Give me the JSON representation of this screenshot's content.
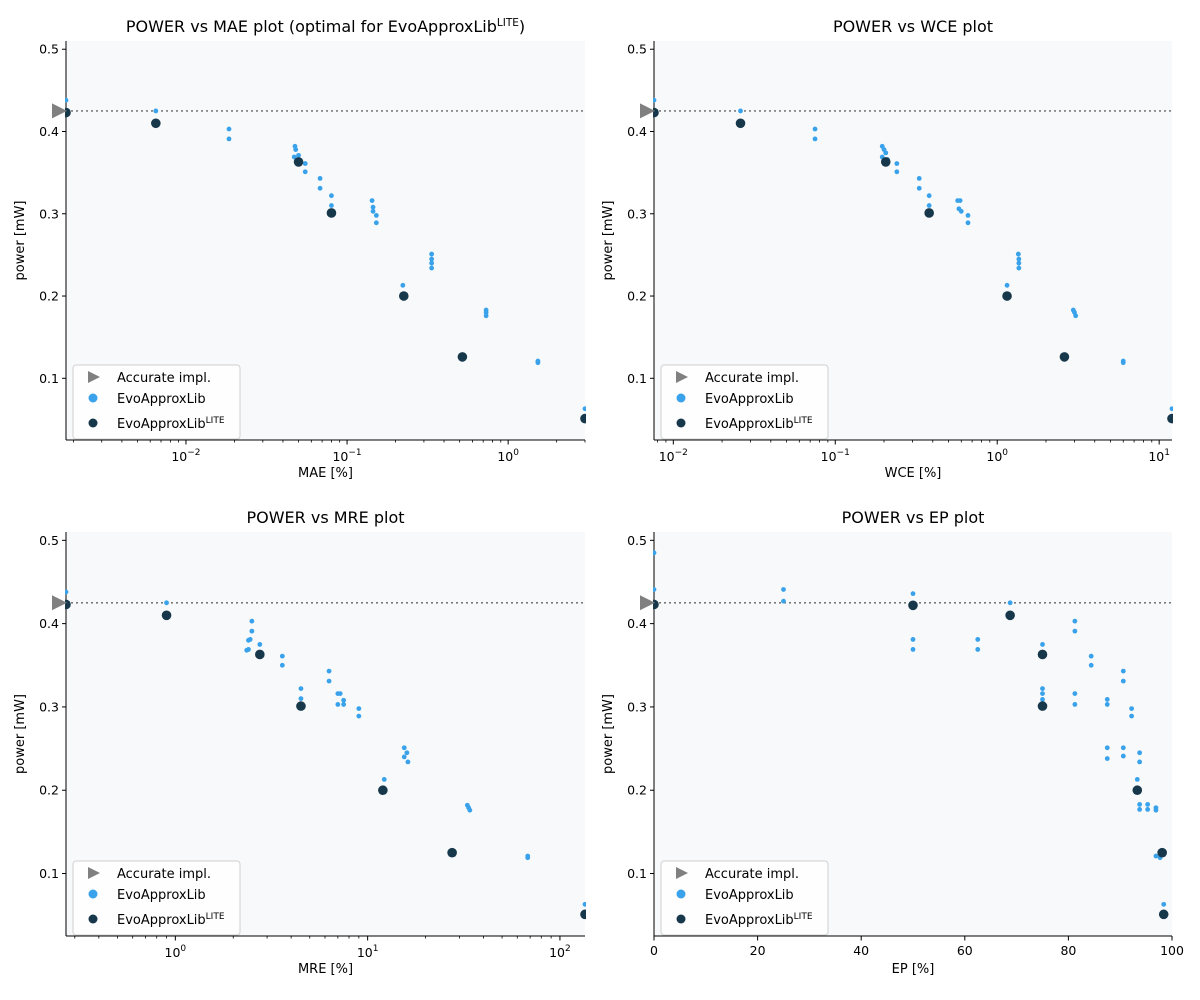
{
  "colors": {
    "accurate": "#808080",
    "evoapproxlib": "#39a2ea",
    "lite": "#17384b",
    "plot_bg": "#f7f9fb",
    "ref_line": "#666666"
  },
  "legend": {
    "accurate": "Accurate impl.",
    "evoapproxlib": "EvoApproxLib",
    "lite_base": "EvoApproxLib",
    "lite_sup": "LITE"
  },
  "chart_data": [
    {
      "id": "mae",
      "type": "scatter",
      "title_prefix": "POWER vs MAE plot (optimal for EvoApproxLib",
      "title_sup": "LITE",
      "title_suffix": ")",
      "title": "POWER vs MAE plot (optimal for EvoApproxLibLITE)",
      "xlabel": "MAE [%]",
      "ylabel": "power [mW]",
      "xscale": "log",
      "xlim": [
        0.0018,
        3.0
      ],
      "ylim": [
        0.025,
        0.51
      ],
      "xticks": [
        {
          "v": 0.01,
          "base": "10",
          "exp": "−2"
        },
        {
          "v": 0.1,
          "base": "10",
          "exp": "−1"
        },
        {
          "v": 1,
          "base": "10",
          "exp": "0"
        }
      ],
      "yticks": [
        "0.1",
        "0.2",
        "0.3",
        "0.4",
        "0.5"
      ],
      "accurate_power": 0.425,
      "evoapproxlib": [
        [
          0.0018,
          0.438
        ],
        [
          0.0065,
          0.425
        ],
        [
          0.0185,
          0.403
        ],
        [
          0.0185,
          0.391
        ],
        [
          0.0475,
          0.382
        ],
        [
          0.048,
          0.378
        ],
        [
          0.05,
          0.371
        ],
        [
          0.047,
          0.369
        ],
        [
          0.05,
          0.365
        ],
        [
          0.055,
          0.361
        ],
        [
          0.055,
          0.351
        ],
        [
          0.068,
          0.343
        ],
        [
          0.068,
          0.331
        ],
        [
          0.08,
          0.322
        ],
        [
          0.08,
          0.31
        ],
        [
          0.143,
          0.316
        ],
        [
          0.145,
          0.308
        ],
        [
          0.145,
          0.303
        ],
        [
          0.152,
          0.298
        ],
        [
          0.152,
          0.289
        ],
        [
          0.222,
          0.213
        ],
        [
          0.335,
          0.251
        ],
        [
          0.335,
          0.245
        ],
        [
          0.335,
          0.24
        ],
        [
          0.335,
          0.234
        ],
        [
          0.73,
          0.183
        ],
        [
          0.73,
          0.18
        ],
        [
          0.73,
          0.176
        ],
        [
          1.53,
          0.121
        ],
        [
          1.53,
          0.119
        ],
        [
          3.0,
          0.063
        ]
      ],
      "lite": [
        [
          0.0018,
          0.423
        ],
        [
          0.0065,
          0.41
        ],
        [
          0.05,
          0.363
        ],
        [
          0.08,
          0.301
        ],
        [
          0.225,
          0.2
        ],
        [
          0.52,
          0.126
        ],
        [
          3.0,
          0.051
        ]
      ]
    },
    {
      "id": "wce",
      "type": "scatter",
      "title": "POWER vs WCE plot",
      "xlabel": "WCE [%]",
      "ylabel": "power [mW]",
      "xscale": "log",
      "xlim": [
        0.0076,
        12.0
      ],
      "ylim": [
        0.025,
        0.51
      ],
      "xticks": [
        {
          "v": 0.01,
          "base": "10",
          "exp": "−2"
        },
        {
          "v": 0.1,
          "base": "10",
          "exp": "−1"
        },
        {
          "v": 1,
          "base": "10",
          "exp": "0"
        },
        {
          "v": 10,
          "base": "10",
          "exp": "1"
        }
      ],
      "yticks": [
        "0.1",
        "0.2",
        "0.3",
        "0.4",
        "0.5"
      ],
      "accurate_power": 0.425,
      "evoapproxlib": [
        [
          0.0076,
          0.438
        ],
        [
          0.026,
          0.425
        ],
        [
          0.075,
          0.403
        ],
        [
          0.075,
          0.391
        ],
        [
          0.195,
          0.382
        ],
        [
          0.2,
          0.378
        ],
        [
          0.205,
          0.374
        ],
        [
          0.195,
          0.369
        ],
        [
          0.21,
          0.366
        ],
        [
          0.24,
          0.361
        ],
        [
          0.24,
          0.351
        ],
        [
          0.33,
          0.343
        ],
        [
          0.33,
          0.331
        ],
        [
          0.38,
          0.322
        ],
        [
          0.38,
          0.31
        ],
        [
          0.57,
          0.316
        ],
        [
          0.59,
          0.316
        ],
        [
          0.58,
          0.306
        ],
        [
          0.6,
          0.303
        ],
        [
          0.66,
          0.298
        ],
        [
          0.66,
          0.289
        ],
        [
          1.15,
          0.213
        ],
        [
          1.35,
          0.251
        ],
        [
          1.36,
          0.245
        ],
        [
          1.36,
          0.24
        ],
        [
          1.36,
          0.234
        ],
        [
          2.95,
          0.183
        ],
        [
          3.0,
          0.18
        ],
        [
          3.05,
          0.176
        ],
        [
          6.0,
          0.121
        ],
        [
          6.0,
          0.119
        ],
        [
          12.0,
          0.063
        ]
      ],
      "lite": [
        [
          0.0076,
          0.423
        ],
        [
          0.026,
          0.41
        ],
        [
          0.205,
          0.363
        ],
        [
          0.38,
          0.301
        ],
        [
          1.15,
          0.2
        ],
        [
          2.6,
          0.126
        ],
        [
          12.0,
          0.051
        ]
      ]
    },
    {
      "id": "mre",
      "type": "scatter",
      "title": "POWER vs MRE plot",
      "xlabel": "MRE [%]",
      "ylabel": "power [mW]",
      "xscale": "log",
      "xlim": [
        0.27,
        135.0
      ],
      "ylim": [
        0.025,
        0.51
      ],
      "xticks": [
        {
          "v": 1,
          "base": "10",
          "exp": "0"
        },
        {
          "v": 10,
          "base": "10",
          "exp": "1"
        },
        {
          "v": 100,
          "base": "10",
          "exp": "2"
        }
      ],
      "yticks": [
        "0.1",
        "0.2",
        "0.3",
        "0.4",
        "0.5"
      ],
      "accurate_power": 0.425,
      "evoapproxlib": [
        [
          0.27,
          0.438
        ],
        [
          0.9,
          0.425
        ],
        [
          2.5,
          0.403
        ],
        [
          2.5,
          0.391
        ],
        [
          2.45,
          0.381
        ],
        [
          2.4,
          0.38
        ],
        [
          2.4,
          0.369
        ],
        [
          2.35,
          0.368
        ],
        [
          2.75,
          0.375
        ],
        [
          3.6,
          0.361
        ],
        [
          3.6,
          0.35
        ],
        [
          4.5,
          0.322
        ],
        [
          4.5,
          0.31
        ],
        [
          6.3,
          0.343
        ],
        [
          6.3,
          0.331
        ],
        [
          7.0,
          0.316
        ],
        [
          7.2,
          0.316
        ],
        [
          7.0,
          0.303
        ],
        [
          7.5,
          0.308
        ],
        [
          7.5,
          0.303
        ],
        [
          9.0,
          0.298
        ],
        [
          9.0,
          0.289
        ],
        [
          12.2,
          0.213
        ],
        [
          15.5,
          0.251
        ],
        [
          16.0,
          0.245
        ],
        [
          15.5,
          0.24
        ],
        [
          16.2,
          0.234
        ],
        [
          33.0,
          0.182
        ],
        [
          33.5,
          0.179
        ],
        [
          34.0,
          0.176
        ],
        [
          68.0,
          0.121
        ],
        [
          68.0,
          0.119
        ],
        [
          135.0,
          0.063
        ]
      ],
      "lite": [
        [
          0.27,
          0.423
        ],
        [
          0.9,
          0.41
        ],
        [
          2.75,
          0.363
        ],
        [
          4.5,
          0.301
        ],
        [
          12.0,
          0.2
        ],
        [
          27.5,
          0.125
        ],
        [
          135.0,
          0.051
        ]
      ]
    },
    {
      "id": "ep",
      "type": "scatter",
      "title": "POWER vs EP plot",
      "xlabel": "EP [%]",
      "ylabel": "power [mW]",
      "xscale": "linear",
      "xlim": [
        0,
        100
      ],
      "ylim": [
        0.025,
        0.51
      ],
      "xticks": [
        {
          "v": 0,
          "text": "0"
        },
        {
          "v": 20,
          "text": "20"
        },
        {
          "v": 40,
          "text": "40"
        },
        {
          "v": 60,
          "text": "60"
        },
        {
          "v": 80,
          "text": "80"
        },
        {
          "v": 100,
          "text": "100"
        }
      ],
      "yticks": [
        "0.1",
        "0.2",
        "0.3",
        "0.4",
        "0.5"
      ],
      "accurate_power": 0.425,
      "evoapproxlib": [
        [
          0,
          0.485
        ],
        [
          0,
          0.441
        ],
        [
          25,
          0.441
        ],
        [
          25,
          0.427
        ],
        [
          50,
          0.436
        ],
        [
          50,
          0.381
        ],
        [
          50,
          0.369
        ],
        [
          62.5,
          0.381
        ],
        [
          62.5,
          0.369
        ],
        [
          68.75,
          0.425
        ],
        [
          75,
          0.375
        ],
        [
          75,
          0.322
        ],
        [
          75,
          0.316
        ],
        [
          75,
          0.309
        ],
        [
          81.25,
          0.403
        ],
        [
          81.25,
          0.391
        ],
        [
          81.25,
          0.316
        ],
        [
          81.25,
          0.303
        ],
        [
          84.4,
          0.361
        ],
        [
          84.4,
          0.35
        ],
        [
          87.5,
          0.309
        ],
        [
          87.5,
          0.303
        ],
        [
          87.5,
          0.251
        ],
        [
          87.5,
          0.238
        ],
        [
          90.6,
          0.343
        ],
        [
          90.6,
          0.331
        ],
        [
          90.6,
          0.251
        ],
        [
          90.6,
          0.241
        ],
        [
          92.2,
          0.298
        ],
        [
          92.2,
          0.289
        ],
        [
          93.75,
          0.245
        ],
        [
          93.75,
          0.234
        ],
        [
          93.3,
          0.213
        ],
        [
          93.75,
          0.183
        ],
        [
          93.75,
          0.177
        ],
        [
          95.3,
          0.183
        ],
        [
          95.3,
          0.177
        ],
        [
          96.9,
          0.179
        ],
        [
          96.9,
          0.176
        ],
        [
          96.9,
          0.121
        ],
        [
          97.7,
          0.119
        ],
        [
          98.4,
          0.063
        ]
      ],
      "lite": [
        [
          0,
          0.423
        ],
        [
          50,
          0.422
        ],
        [
          68.75,
          0.41
        ],
        [
          75,
          0.363
        ],
        [
          75,
          0.301
        ],
        [
          93.3,
          0.2
        ],
        [
          98.1,
          0.125
        ],
        [
          98.4,
          0.051
        ]
      ]
    }
  ]
}
